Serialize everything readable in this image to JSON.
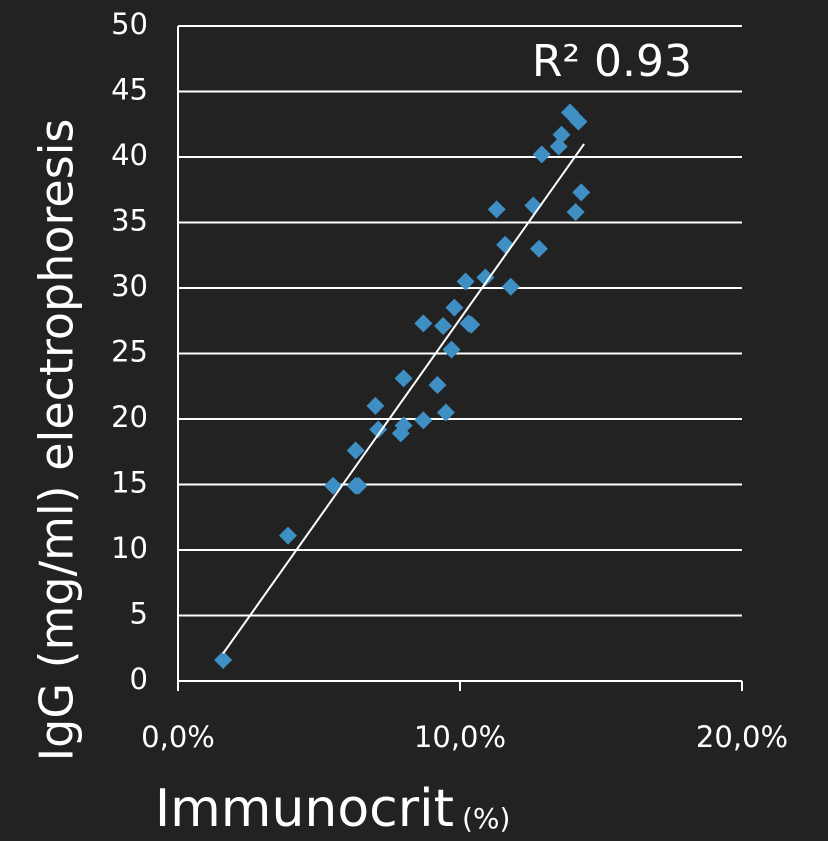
{
  "chart_data": {
    "type": "scatter",
    "ylabel": "IgG (mg/ml) electrophoresis",
    "xlabel": "Immunocrit",
    "xlabel_unit": "(%)",
    "annotation": "R² 0.93",
    "x": [
      1.6,
      3.9,
      5.5,
      6.3,
      6.4,
      6.3,
      7.0,
      7.1,
      7.9,
      8.0,
      8.0,
      8.7,
      8.7,
      9.5,
      9.2,
      9.4,
      9.7,
      9.8,
      10.3,
      10.4,
      10.2,
      10.9,
      11.3,
      11.6,
      11.8,
      12.6,
      12.8,
      12.9,
      13.5,
      13.6,
      13.9,
      14.2,
      14.1,
      14.3
    ],
    "y": [
      1.6,
      11.1,
      14.9,
      14.9,
      14.9,
      17.6,
      21.0,
      19.2,
      18.9,
      19.5,
      23.1,
      19.9,
      27.3,
      20.5,
      22.6,
      27.1,
      25.3,
      28.5,
      27.3,
      27.2,
      30.5,
      30.8,
      36.0,
      33.3,
      30.1,
      36.3,
      33.0,
      40.2,
      40.8,
      41.7,
      43.4,
      42.7,
      35.8,
      37.3
    ],
    "color": "#3f8fc4",
    "trendline": {
      "x": [
        1.6,
        14.4
      ],
      "y": [
        2.1,
        41.0
      ]
    },
    "xlim": [
      0,
      20
    ],
    "ylim": [
      0,
      50
    ],
    "xticks": [
      {
        "value": 0,
        "label": "0,0%"
      },
      {
        "value": 10,
        "label": "10,0%"
      },
      {
        "value": 20,
        "label": "20,0%"
      }
    ],
    "yticks": [
      0,
      5,
      10,
      15,
      20,
      25,
      30,
      35,
      40,
      45,
      50
    ],
    "grid": true
  }
}
